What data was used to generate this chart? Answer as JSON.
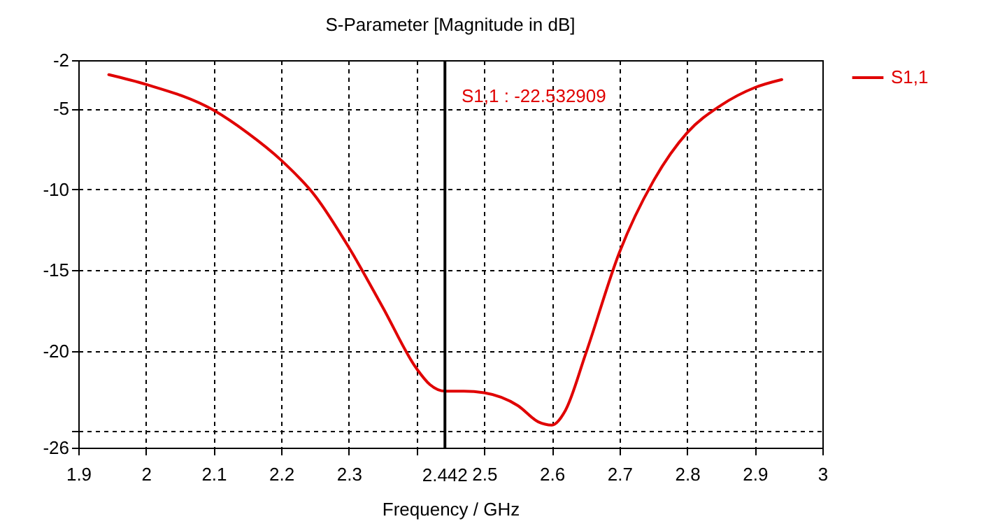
{
  "chart_data": {
    "type": "line",
    "title": "S-Parameter [Magnitude in dB]",
    "xlabel": "Frequency / GHz",
    "x": [
      1.945,
      2.0,
      2.1,
      2.15,
      2.2,
      2.25,
      2.3,
      2.35,
      2.4,
      2.42,
      2.442,
      2.47,
      2.5,
      2.55,
      2.58,
      2.6,
      2.62,
      2.65,
      2.7,
      2.75,
      2.8,
      2.85,
      2.9,
      2.94
    ],
    "series": [
      {
        "name": "S1,1",
        "color": "#e00000",
        "values": [
          -2.9,
          -3.5,
          -5.1,
          -6.5,
          -8.2,
          -10.4,
          -13.6,
          -17.3,
          -21.1,
          -22.1,
          -22.5,
          -22.5,
          -22.6,
          -23.4,
          -24.4,
          -24.6,
          -23.7,
          -20.2,
          -13.9,
          -9.5,
          -6.5,
          -4.8,
          -3.7,
          -3.2
        ]
      }
    ],
    "xlim": [
      1.9,
      3
    ],
    "xticks": [
      1.9,
      2,
      2.1,
      2.2,
      2.3,
      {
        "value": 2.4,
        "label": null
      },
      2.5,
      2.6,
      2.7,
      2.8,
      2.9,
      3
    ],
    "ylim": [
      -26,
      -2
    ],
    "yticks": [
      -2,
      -5,
      -10,
      -15,
      -20,
      {
        "value": -25,
        "label": null
      },
      -26
    ],
    "ref_lines": [
      {
        "axis": "x",
        "value": 2.442,
        "label": "2.442",
        "color": "#000000"
      }
    ],
    "annotations": [
      "S1,1 : -22.532909"
    ],
    "grid": true,
    "legend": "top right",
    "line_style": "solid",
    "marker": "none"
  }
}
